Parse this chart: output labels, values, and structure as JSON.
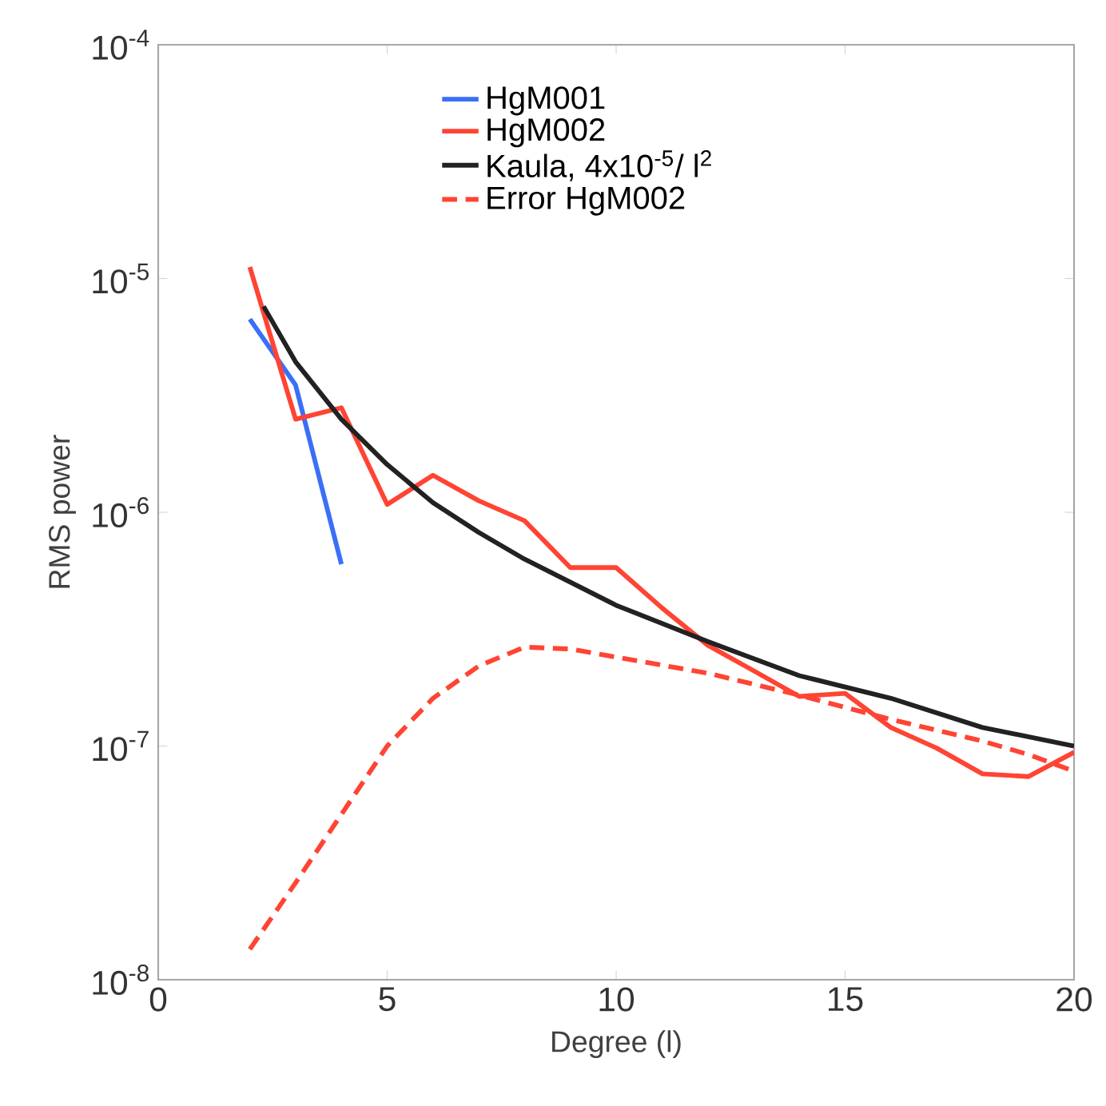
{
  "chart_data": {
    "type": "line",
    "xlabel": "Degree (l)",
    "ylabel": "RMS power",
    "xlim": [
      0,
      20
    ],
    "ylim": [
      1e-08,
      0.0001
    ],
    "xticks": [
      0,
      5,
      10,
      15,
      20
    ],
    "yticks": [
      {
        "value": 1e-08,
        "label": "10$^{-8}$"
      },
      {
        "value": 1e-07,
        "label": "10$^{-7}$"
      },
      {
        "value": 1e-06,
        "label": "10$^{-6}$"
      },
      {
        "value": 1e-05,
        "label": "10$^{-5}$"
      },
      {
        "value": 0.0001,
        "label": "10$^{-4}$"
      }
    ],
    "log": "y",
    "legend": "top right",
    "marker": "none",
    "series": [
      {
        "name": "HgM001",
        "color": "#3a6ff7",
        "line_style": "solid",
        "x": [
          2,
          3,
          4
        ],
        "values": [
          6.7e-06,
          3.5e-06,
          6e-07
        ]
      },
      {
        "name": "HgM002",
        "color": "#ff4433",
        "line_style": "solid",
        "x": [
          2,
          3,
          4,
          5,
          6,
          7,
          8,
          9,
          10,
          11,
          12,
          13,
          14,
          15,
          16,
          17,
          18,
          19,
          20
        ],
        "values": [
          1.12e-05,
          2.5e-06,
          2.8e-06,
          1.08e-06,
          1.44e-06,
          1.12e-06,
          9.2e-07,
          5.8e-07,
          5.8e-07,
          3.9e-07,
          2.7e-07,
          2.1e-07,
          1.63e-07,
          1.68e-07,
          1.2e-07,
          9.8e-08,
          7.6e-08,
          7.4e-08,
          9.4e-08
        ]
      },
      {
        "name": "Kaula, 4x10$^{-5}$/ l$^{2}$",
        "color": "#222222",
        "line_style": "solid",
        "x": [
          2.3,
          3,
          4,
          5,
          6,
          7,
          8,
          10,
          12,
          14,
          16,
          18,
          20
        ],
        "values": [
          7.6e-06,
          4.4e-06,
          2.5e-06,
          1.6e-06,
          1.1e-06,
          8.2e-07,
          6.3e-07,
          4e-07,
          2.8e-07,
          2e-07,
          1.6e-07,
          1.2e-07,
          1e-07
        ]
      },
      {
        "name": "Error HgM002",
        "color": "#ff4433",
        "line_style": "dashed",
        "x": [
          2,
          3,
          4,
          5,
          6,
          7,
          8,
          9,
          10,
          12,
          14,
          16,
          18,
          19,
          20
        ],
        "values": [
          1.35e-08,
          2.6e-08,
          5.1e-08,
          1e-07,
          1.6e-07,
          2.2e-07,
          2.65e-07,
          2.6e-07,
          2.4e-07,
          2.05e-07,
          1.65e-07,
          1.3e-07,
          1.05e-07,
          9.2e-08,
          7.8e-08
        ]
      }
    ]
  }
}
